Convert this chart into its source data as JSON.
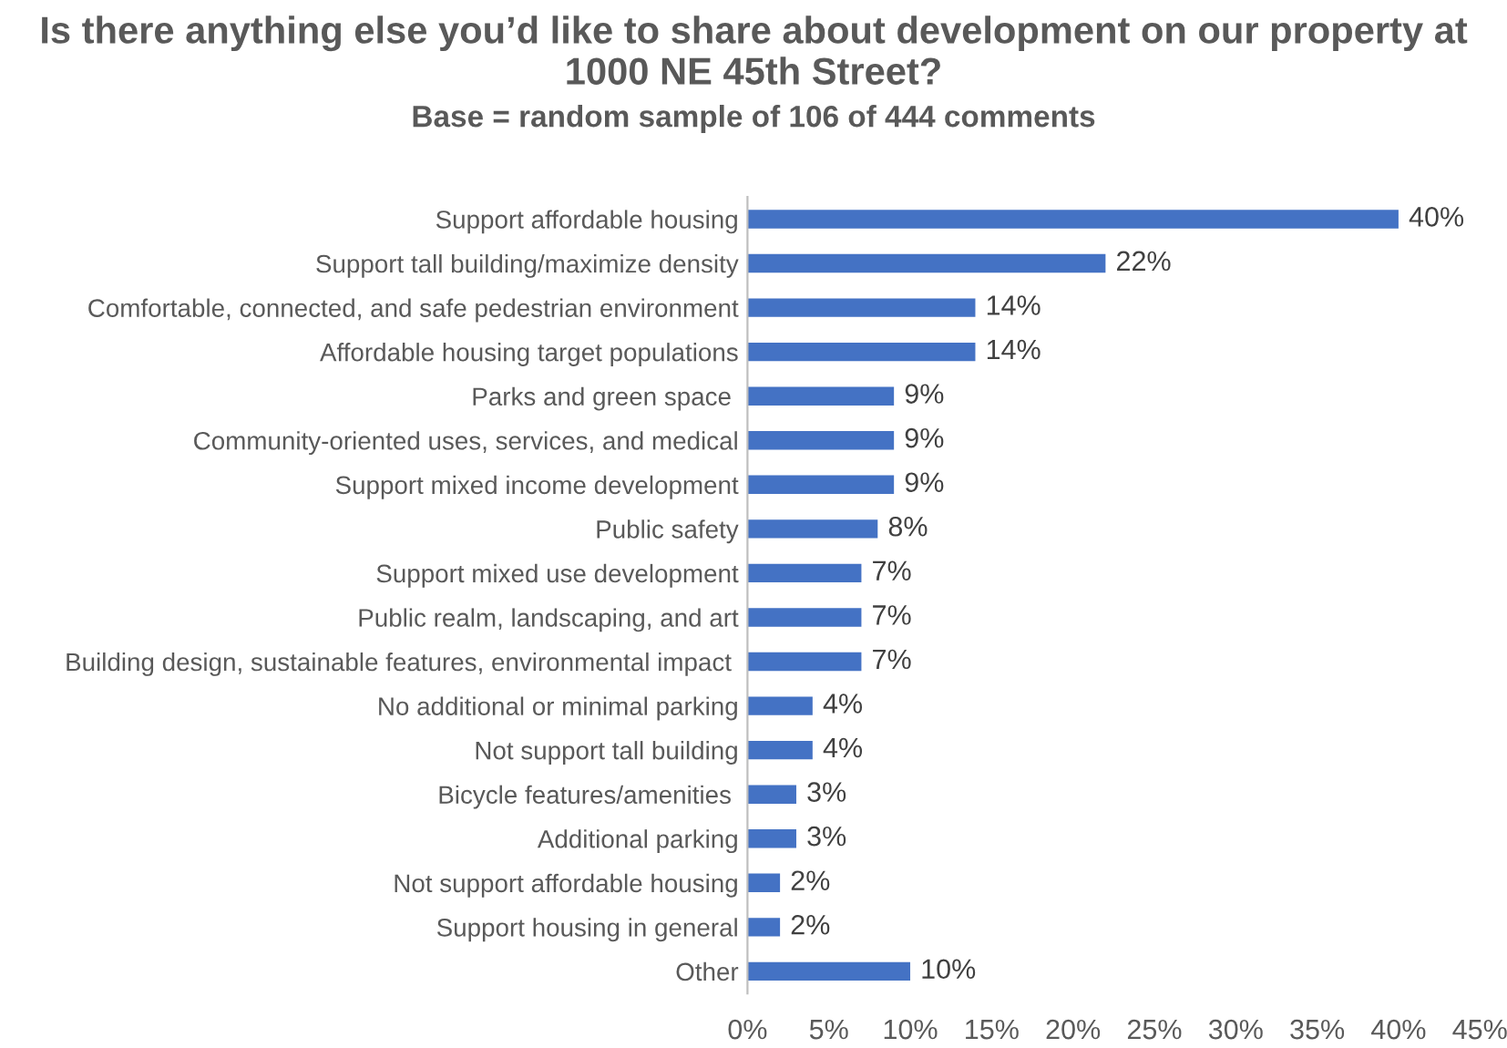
{
  "chart_data": {
    "type": "bar",
    "orientation": "horizontal",
    "title": "Is there anything else you’d like to share about development on our property at 1000 NE 45th Street?",
    "subtitle": "Base = random sample of 106 of 444 comments",
    "categories": [
      "Support affordable housing",
      "Support tall building/maximize density",
      "Comfortable, connected, and safe pedestrian environment",
      "Affordable housing target populations",
      "Parks and green space ",
      "Community-oriented uses, services, and medical",
      "Support mixed income development",
      "Public safety",
      "Support mixed use development",
      "Public realm, landscaping, and art",
      "Building design, sustainable features, environmental impact ",
      "No additional or minimal parking",
      "Not support tall building",
      "Bicycle features/amenities ",
      "Additional parking",
      "Not support affordable housing",
      "Support housing in general",
      "Other"
    ],
    "values": [
      40,
      22,
      14,
      14,
      9,
      9,
      9,
      8,
      7,
      7,
      7,
      4,
      4,
      3,
      3,
      2,
      2,
      10
    ],
    "value_labels": [
      "40%",
      "22%",
      "14%",
      "14%",
      "9%",
      "9%",
      "9%",
      "8%",
      "7%",
      "7%",
      "7%",
      "4%",
      "4%",
      "3%",
      "3%",
      "2%",
      "2%",
      "10%"
    ],
    "color": "#4472c4",
    "xlim": [
      0,
      45
    ],
    "xticks": [
      {
        "value": 0,
        "label": "0%"
      },
      {
        "value": 5,
        "label": "5%"
      },
      {
        "value": 10,
        "label": "10%"
      },
      {
        "value": 15,
        "label": "15%"
      },
      {
        "value": 20,
        "label": "20%"
      },
      {
        "value": 25,
        "label": "25%"
      },
      {
        "value": 30,
        "label": "30%"
      },
      {
        "value": 35,
        "label": "35%"
      },
      {
        "value": 40,
        "label": "40%"
      },
      {
        "value": 45,
        "label": "45%"
      }
    ],
    "grid": false,
    "legend": false
  }
}
